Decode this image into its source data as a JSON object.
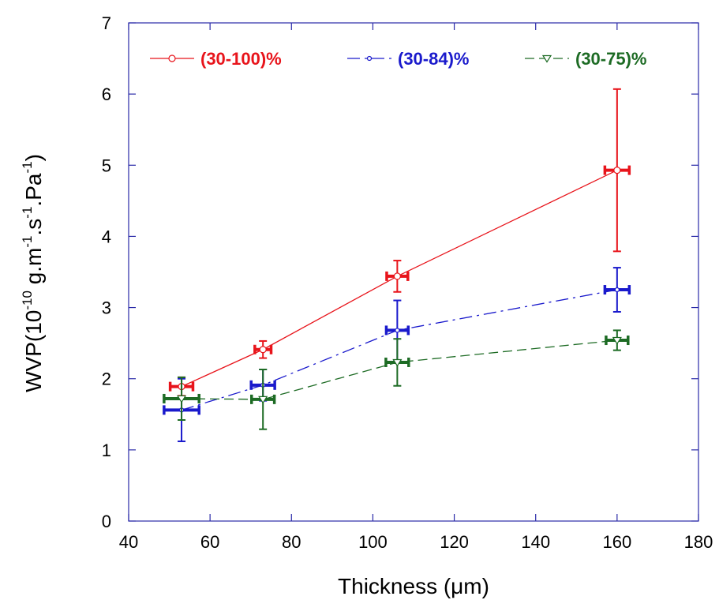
{
  "chart_data": {
    "type": "line",
    "title": "",
    "xlabel": "Thickness (μm)",
    "ylabel": {
      "prefix": "WVP(10",
      "exp1": "-10",
      "mid1": " g.m",
      "exp2": "-1",
      "mid2": ".s",
      "exp3": "-1",
      "mid3": ".Pa",
      "exp4": "-1",
      "suffix": ")"
    },
    "xlim": [
      40,
      180
    ],
    "ylim": [
      0,
      7
    ],
    "xticks": [
      40,
      60,
      80,
      100,
      120,
      140,
      160,
      180
    ],
    "yticks": [
      0,
      1,
      2,
      3,
      4,
      5,
      6,
      7
    ],
    "grid": false,
    "legend_position": "top",
    "series": [
      {
        "name": "(30-100)%",
        "color": "#e8141b",
        "marker": "circle",
        "line_style": "solid",
        "points": [
          {
            "x": 53,
            "y": 1.89,
            "xerr": 2.8,
            "yerr": 0.13
          },
          {
            "x": 73,
            "y": 2.41,
            "xerr": 2.0,
            "yerr": 0.12
          },
          {
            "x": 106,
            "y": 3.44,
            "xerr": 2.6,
            "yerr": 0.22
          },
          {
            "x": 160,
            "y": 4.93,
            "xerr": 3.0,
            "yerr": 1.14
          }
        ]
      },
      {
        "name": "(30-84)%",
        "color": "#1a1acc",
        "marker": "circle-small",
        "line_style": "dashdot",
        "points": [
          {
            "x": 53,
            "y": 1.56,
            "xerr": 4.3,
            "yerr": 0.44
          },
          {
            "x": 73,
            "y": 1.91,
            "xerr": 2.9,
            "yerr": 0.22
          },
          {
            "x": 106,
            "y": 2.68,
            "xerr": 2.7,
            "yerr": 0.42
          },
          {
            "x": 160,
            "y": 3.25,
            "xerr": 3.0,
            "yerr": 0.31
          }
        ]
      },
      {
        "name": "(30-75)%",
        "color": "#1d6b24",
        "marker": "triangle-down",
        "line_style": "dashed",
        "points": [
          {
            "x": 53,
            "y": 1.72,
            "xerr": 4.3,
            "yerr": 0.3
          },
          {
            "x": 73,
            "y": 1.71,
            "xerr": 2.8,
            "yerr": 0.42
          },
          {
            "x": 106,
            "y": 2.23,
            "xerr": 2.8,
            "yerr": 0.33
          },
          {
            "x": 160,
            "y": 2.54,
            "xerr": 2.7,
            "yerr": 0.14
          }
        ]
      }
    ]
  }
}
